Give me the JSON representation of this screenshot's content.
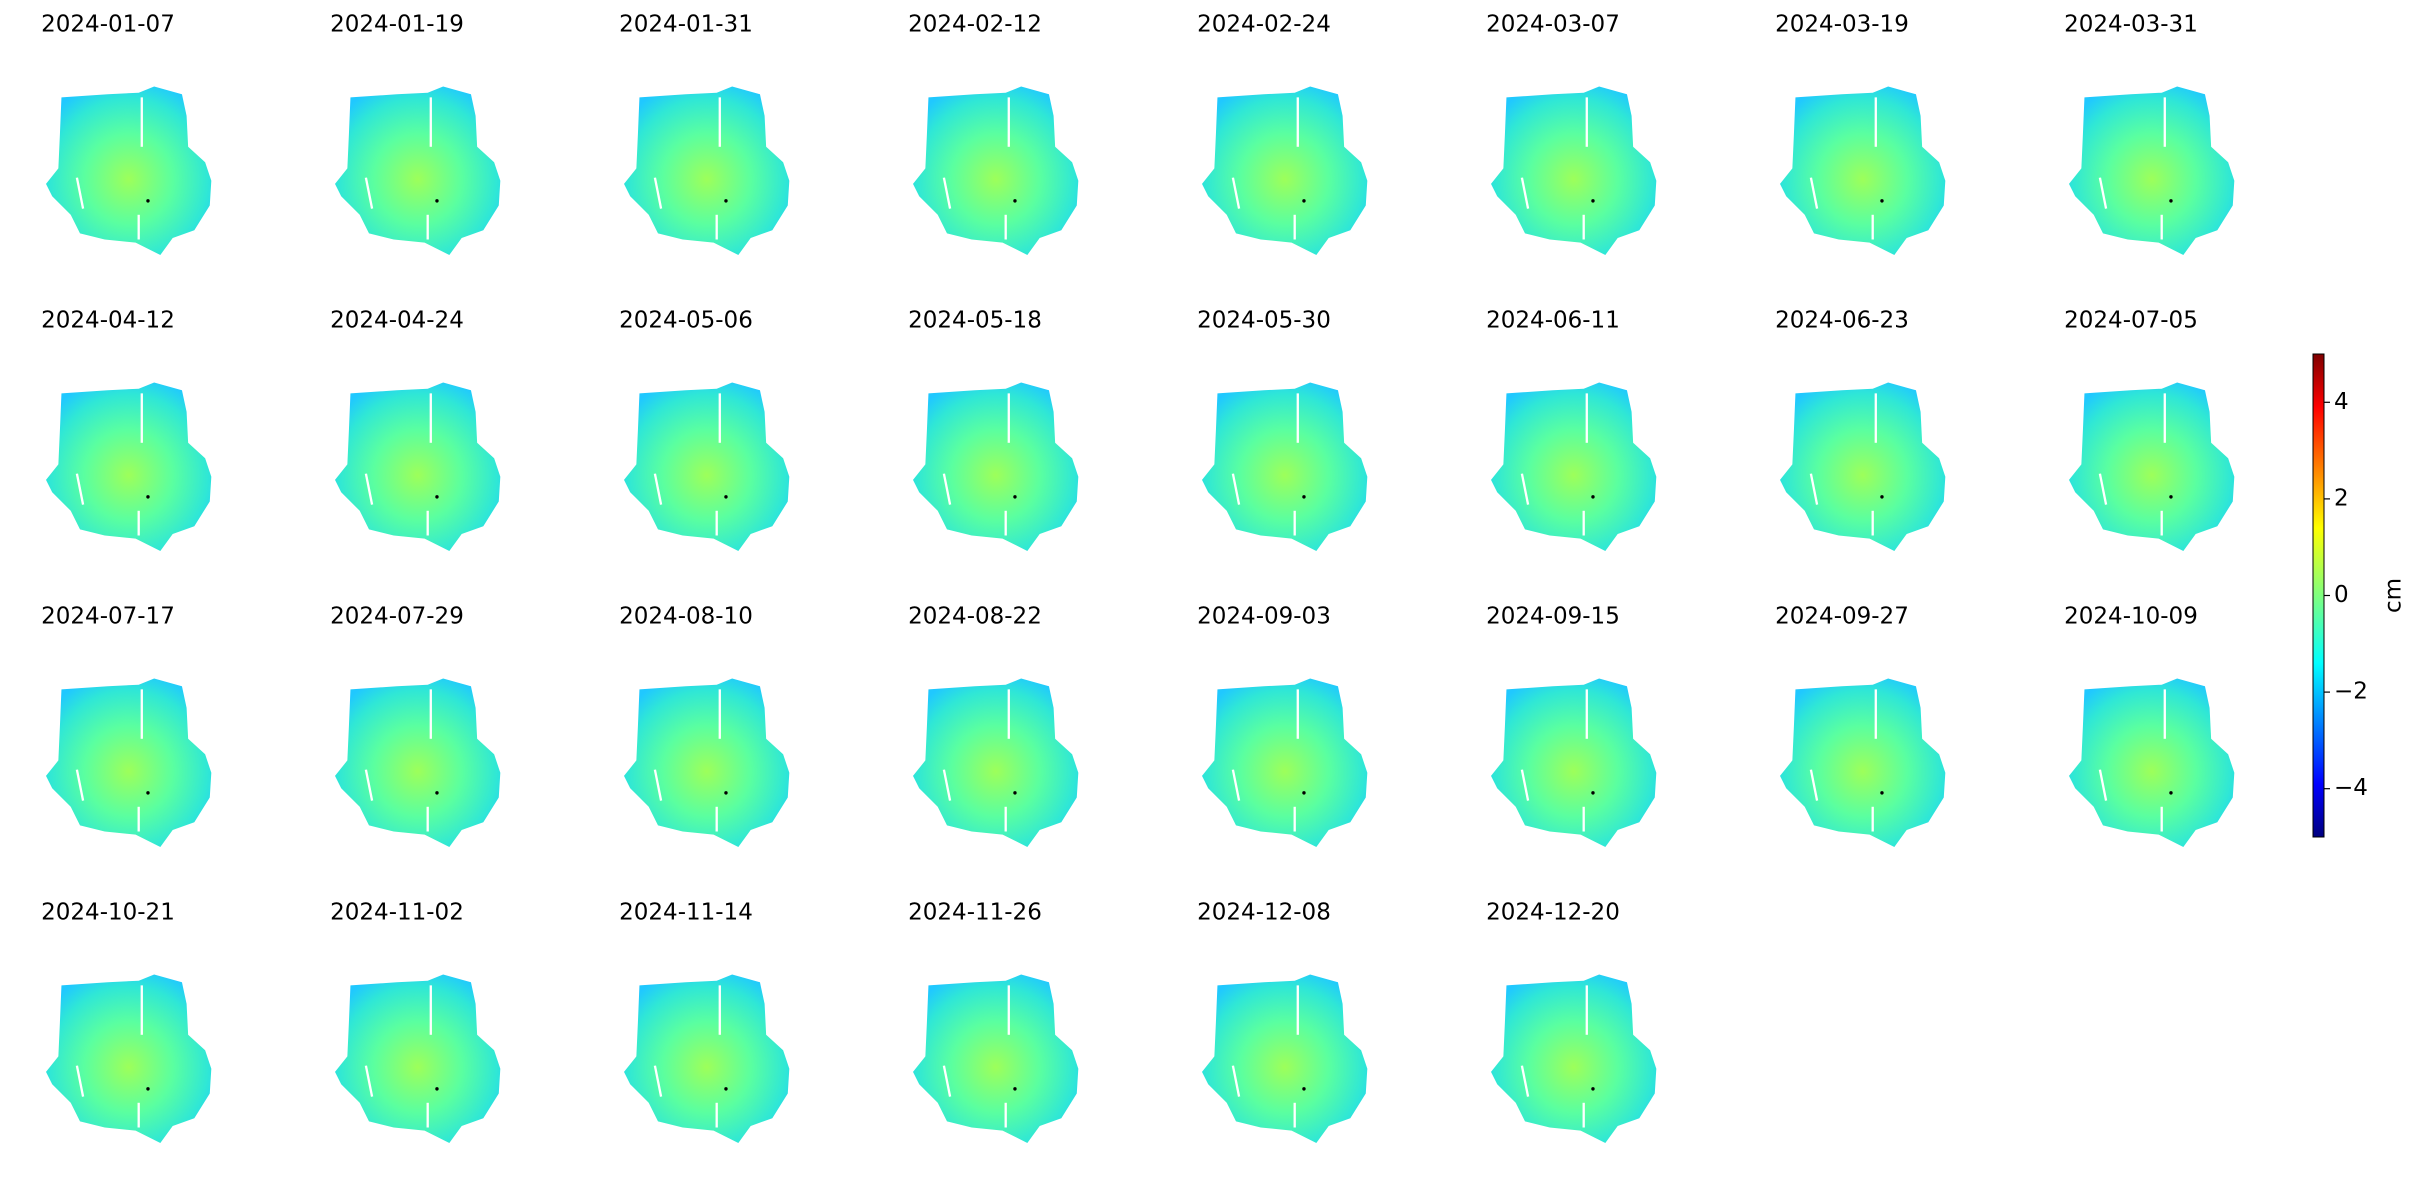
{
  "chart_data": {
    "type": "image_grid",
    "panels": [
      {
        "title": "2024-01-07"
      },
      {
        "title": "2024-01-19"
      },
      {
        "title": "2024-01-31"
      },
      {
        "title": "2024-02-12"
      },
      {
        "title": "2024-02-24"
      },
      {
        "title": "2024-03-07"
      },
      {
        "title": "2024-03-19"
      },
      {
        "title": "2024-03-31"
      },
      {
        "title": "2024-04-12"
      },
      {
        "title": "2024-04-24"
      },
      {
        "title": "2024-05-06"
      },
      {
        "title": "2024-05-18"
      },
      {
        "title": "2024-05-30"
      },
      {
        "title": "2024-06-11"
      },
      {
        "title": "2024-06-23"
      },
      {
        "title": "2024-07-05"
      },
      {
        "title": "2024-07-17"
      },
      {
        "title": "2024-07-29"
      },
      {
        "title": "2024-08-10"
      },
      {
        "title": "2024-08-22"
      },
      {
        "title": "2024-09-03"
      },
      {
        "title": "2024-09-15"
      },
      {
        "title": "2024-09-27"
      },
      {
        "title": "2024-10-09"
      },
      {
        "title": "2024-10-21"
      },
      {
        "title": "2024-11-02"
      },
      {
        "title": "2024-11-14"
      },
      {
        "title": "2024-11-26"
      },
      {
        "title": "2024-12-08"
      },
      {
        "title": "2024-12-20"
      }
    ],
    "colorbar": {
      "label": "cm",
      "colormap": "jet",
      "lim": [
        -5,
        5
      ],
      "ticks": [
        {
          "value": -4,
          "label": "−4"
        },
        {
          "value": -2,
          "label": "−2"
        },
        0,
        2,
        4
      ]
    }
  }
}
